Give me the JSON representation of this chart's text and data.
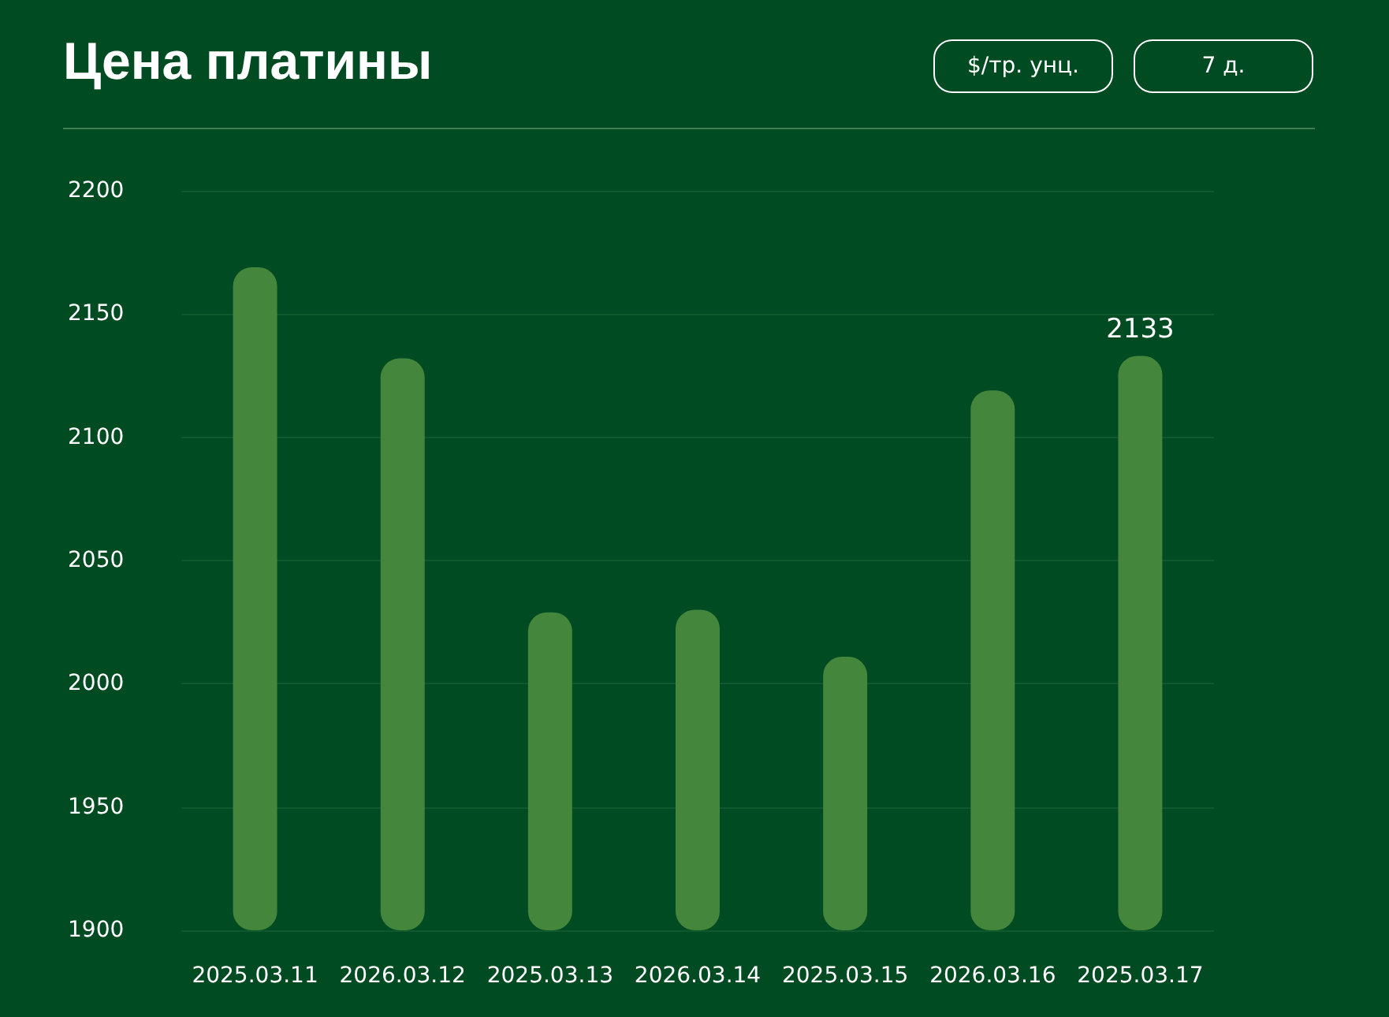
{
  "chart_data": {
    "type": "bar",
    "title": "Цена платины",
    "categories": [
      "2025.03.11",
      "2026.03.12",
      "2025.03.13",
      "2026.03.14",
      "2025.03.15",
      "2026.03.16",
      "2025.03.17"
    ],
    "values": [
      2169,
      2132,
      2029,
      2030,
      2011,
      2119,
      2133
    ],
    "value_labels": [
      null,
      null,
      null,
      null,
      null,
      null,
      "2133"
    ],
    "color": "#43863c",
    "ylim": [
      1900,
      2200
    ],
    "yticks": [
      1900,
      1950,
      2000,
      2050,
      2100,
      2150,
      2200
    ],
    "grid": "y",
    "annotations": [
      "$/тр. унц.",
      "7 д."
    ]
  }
}
